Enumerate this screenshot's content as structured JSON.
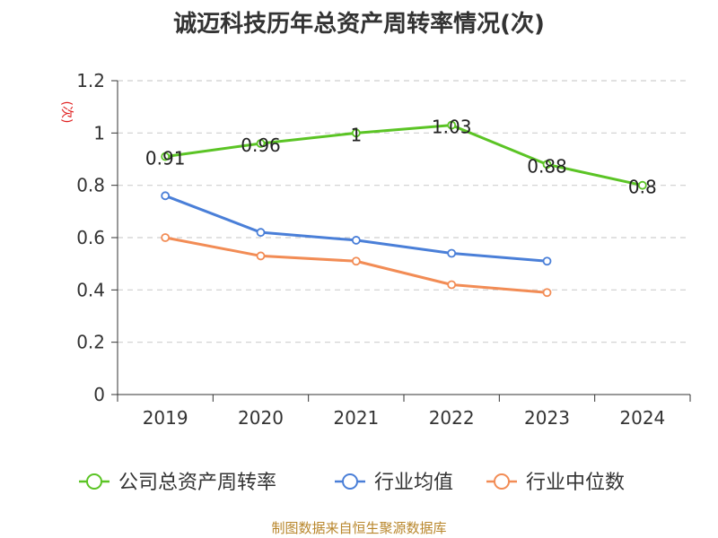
{
  "chart_data": {
    "type": "line",
    "title": "诚迈科技历年总资产周转率情况(次)",
    "ylabel": "(次)",
    "xlabel": "",
    "categories": [
      "2019",
      "2020",
      "2021",
      "2022",
      "2023",
      "2024"
    ],
    "ylim": [
      0,
      1.2
    ],
    "yticks": [
      "0",
      "0.2",
      "0.4",
      "0.6",
      "0.8",
      "1",
      "1.2"
    ],
    "grid": true,
    "legend_position": "bottom",
    "series": [
      {
        "name": "公司总资产周转率",
        "color": "#5bc425",
        "values": [
          0.91,
          0.96,
          1,
          1.03,
          0.88,
          0.8
        ],
        "labels": [
          "0.91",
          "0.96",
          "1",
          "1.03",
          "0.88",
          "0.8"
        ]
      },
      {
        "name": "行业均值",
        "color": "#4a7fd8",
        "values": [
          0.76,
          0.62,
          0.59,
          0.54,
          0.51,
          null
        ]
      },
      {
        "name": "行业中位数",
        "color": "#f28c55",
        "values": [
          0.6,
          0.53,
          0.51,
          0.42,
          0.39,
          null
        ]
      }
    ]
  },
  "source_note": "制图数据来自恒生聚源数据库"
}
